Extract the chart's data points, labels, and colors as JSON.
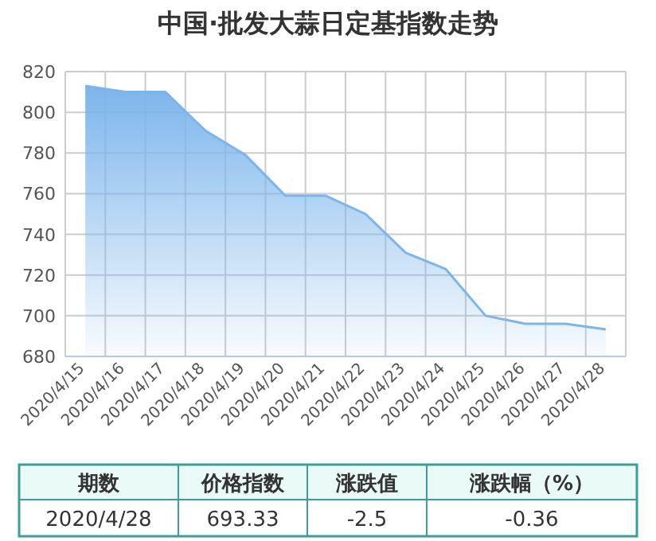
{
  "chart_data": {
    "type": "area",
    "title": "中国·批发大蒜日定基指数走势",
    "categories": [
      "2020/4/15",
      "2020/4/16",
      "2020/4/17",
      "2020/4/18",
      "2020/4/19",
      "2020/4/20",
      "2020/4/21",
      "2020/4/22",
      "2020/4/23",
      "2020/4/24",
      "2020/4/25",
      "2020/4/26",
      "2020/4/27",
      "2020/4/28"
    ],
    "values": [
      813,
      810,
      810,
      791,
      779,
      759,
      759,
      750,
      731,
      723,
      700,
      696,
      696,
      693.33
    ],
    "color": "#7cb5ec",
    "ylim": [
      680,
      820
    ],
    "yticks": [
      680,
      700,
      720,
      740,
      760,
      780,
      800,
      820
    ],
    "grid": true,
    "marker": "none",
    "annotations": [
      "期数",
      "价格指数",
      "涨跌值",
      "涨跌幅（%）",
      "2020/4/28",
      "693.33",
      "-2.5",
      "-0.36"
    ]
  }
}
